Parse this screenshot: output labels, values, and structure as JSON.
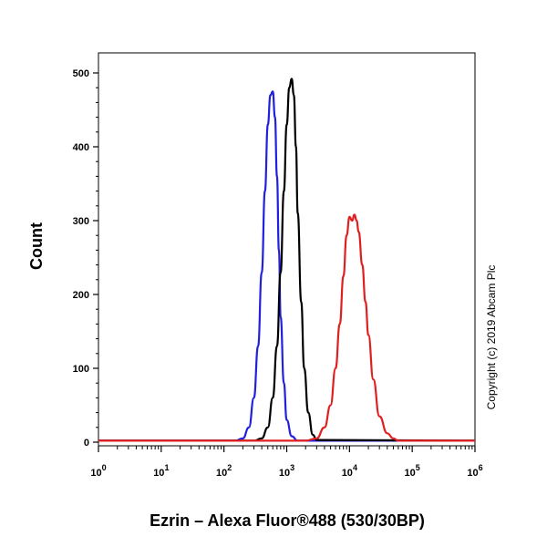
{
  "chart_data": {
    "type": "line",
    "xlabel": "Ezrin – Alexa Fluor®488 (530/30BP)",
    "ylabel": "Count",
    "xscale": "log",
    "xlim": [
      1,
      1000000
    ],
    "ylim": [
      0,
      520
    ],
    "x_ticks": [
      {
        "value": 1,
        "base": "10",
        "exp": "0"
      },
      {
        "value": 10,
        "base": "10",
        "exp": "1"
      },
      {
        "value": 100,
        "base": "10",
        "exp": "2"
      },
      {
        "value": 1000,
        "base": "10",
        "exp": "3"
      },
      {
        "value": 10000,
        "base": "10",
        "exp": "4"
      },
      {
        "value": 100000,
        "base": "10",
        "exp": "5"
      },
      {
        "value": 1000000,
        "base": "10",
        "exp": "6"
      }
    ],
    "y_ticks": [
      0,
      100,
      200,
      300,
      400,
      500
    ],
    "grid": false,
    "legend": "none",
    "annotation": "Copyright (c) 2019 Abcam Plc",
    "series": [
      {
        "color": "#2020e0",
        "x": [
          1,
          150,
          200,
          250,
          300,
          350,
          400,
          450,
          500,
          550,
          600,
          650,
          700,
          750,
          800,
          900,
          1000,
          1200,
          1500,
          1000000
        ],
        "y": [
          2,
          2,
          5,
          20,
          60,
          130,
          230,
          340,
          430,
          470,
          475,
          440,
          360,
          260,
          170,
          80,
          30,
          8,
          2,
          2
        ]
      },
      {
        "color": "#000000",
        "x": [
          1,
          300,
          400,
          500,
          600,
          700,
          800,
          900,
          1000,
          1100,
          1200,
          1300,
          1400,
          1500,
          1700,
          1900,
          2200,
          2600,
          3000,
          1000000
        ],
        "y": [
          2,
          2,
          5,
          20,
          60,
          130,
          230,
          340,
          430,
          480,
          492,
          470,
          400,
          310,
          190,
          100,
          40,
          10,
          3,
          2
        ]
      },
      {
        "color": "#e02020",
        "x": [
          1,
          2000,
          3000,
          4000,
          5000,
          6000,
          7000,
          8000,
          9000,
          10000,
          11000,
          12000,
          13000,
          14000,
          16000,
          18000,
          20000,
          24000,
          30000,
          40000,
          50000,
          60000,
          1000000
        ],
        "y": [
          2,
          2,
          5,
          20,
          50,
          100,
          160,
          225,
          280,
          305,
          300,
          308,
          300,
          285,
          240,
          190,
          145,
          85,
          35,
          12,
          5,
          2,
          2
        ]
      }
    ]
  }
}
